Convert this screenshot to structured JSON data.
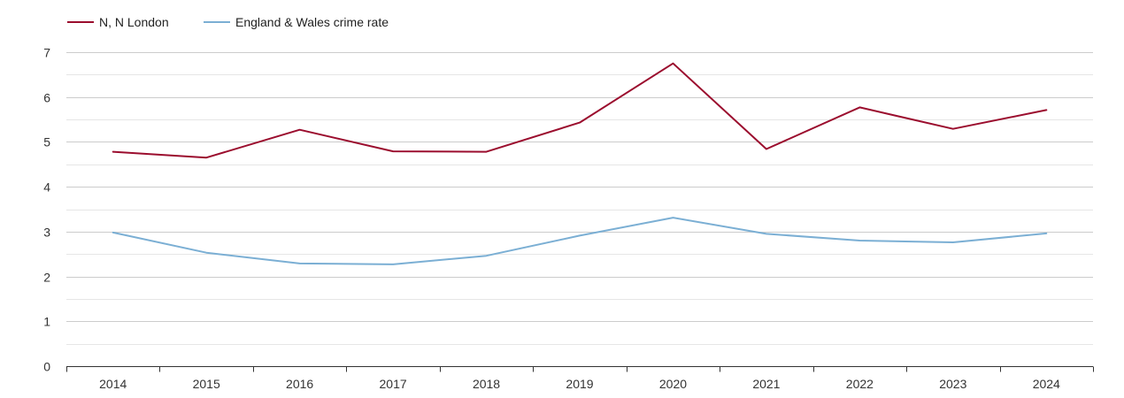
{
  "chart_data": {
    "type": "line",
    "title": "",
    "xlabel": "",
    "ylabel": "",
    "categories": [
      "2014",
      "2015",
      "2016",
      "2017",
      "2018",
      "2019",
      "2020",
      "2021",
      "2022",
      "2023",
      "2024"
    ],
    "ylim": [
      0,
      7
    ],
    "yticks": [
      0,
      1,
      2,
      3,
      4,
      5,
      6,
      7
    ],
    "grid": true,
    "legend_position": "top-left",
    "series": [
      {
        "name": "N, N London",
        "color": "#9b0d2e",
        "values": [
          4.78,
          4.65,
          5.27,
          4.79,
          4.78,
          5.43,
          6.75,
          4.84,
          5.77,
          5.29,
          5.71
        ]
      },
      {
        "name": "England & Wales crime rate",
        "color": "#7bafd4",
        "values": [
          2.98,
          2.53,
          2.29,
          2.27,
          2.46,
          2.91,
          3.31,
          2.95,
          2.8,
          2.76,
          2.96
        ]
      }
    ]
  }
}
